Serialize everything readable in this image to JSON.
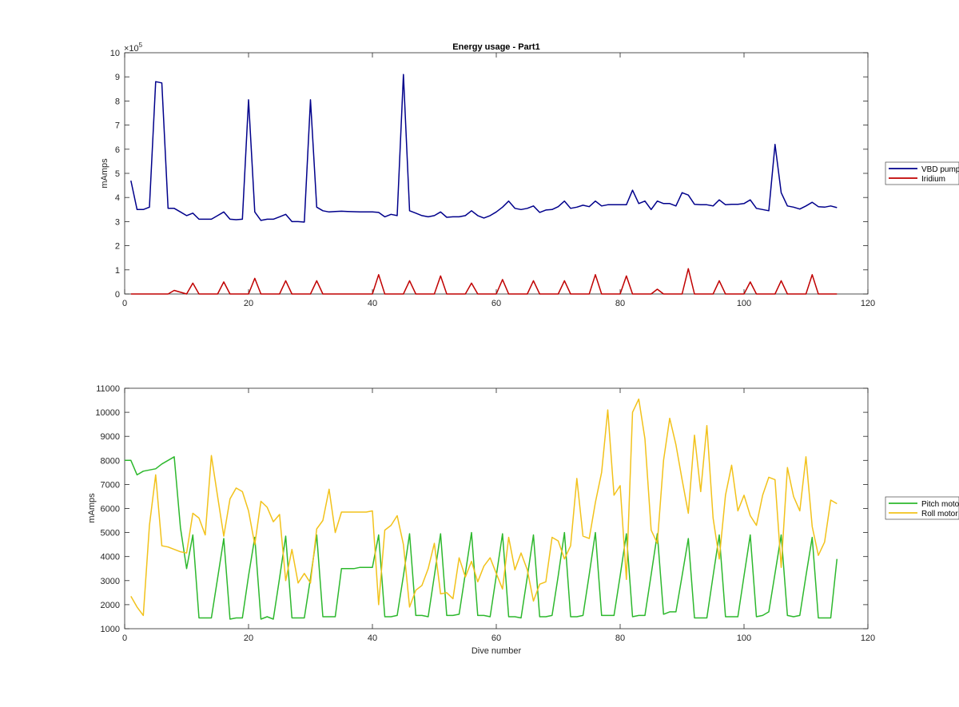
{
  "chart_data": [
    {
      "type": "line",
      "title": "Energy usage - Part1",
      "xlabel": "",
      "ylabel": "mAmps",
      "exponent_label": "×10",
      "exponent_power": "5",
      "xlim": [
        0,
        120
      ],
      "ylim": [
        0,
        1000000
      ],
      "xticks": [
        0,
        20,
        40,
        60,
        80,
        100,
        120
      ],
      "yticks": [
        0,
        100000,
        200000,
        300000,
        400000,
        500000,
        600000,
        700000,
        800000,
        900000,
        1000000
      ],
      "ytick_labels": [
        "0",
        "1",
        "2",
        "3",
        "4",
        "5",
        "6",
        "7",
        "8",
        "9",
        "10"
      ],
      "legend_position": "right",
      "series": [
        {
          "name": "VBD pump",
          "color": "#00008B",
          "x": [
            1,
            2,
            3,
            4,
            5,
            6,
            7,
            8,
            9,
            10,
            11,
            12,
            13,
            14,
            15,
            16,
            17,
            18,
            19,
            20,
            21,
            22,
            23,
            24,
            25,
            26,
            27,
            28,
            29,
            30,
            31,
            32,
            33,
            34,
            35,
            36,
            37,
            38,
            39,
            40,
            41,
            42,
            43,
            44,
            45,
            46,
            47,
            48,
            49,
            50,
            51,
            52,
            53,
            54,
            55,
            56,
            57,
            58,
            59,
            60,
            61,
            62,
            63,
            64,
            65,
            66,
            67,
            68,
            69,
            70,
            71,
            72,
            73,
            74,
            75,
            76,
            77,
            78,
            79,
            80,
            81,
            82,
            83,
            84,
            85,
            86,
            87,
            88,
            89,
            90,
            91,
            92,
            93,
            94,
            95,
            96,
            97,
            98,
            99,
            100,
            101,
            102,
            103,
            104,
            105,
            106,
            107,
            108,
            109,
            110,
            111,
            112,
            113,
            114,
            115
          ],
          "y": [
            470000,
            350000,
            350000,
            360000,
            880000,
            875000,
            355000,
            355000,
            340000,
            325000,
            335000,
            310000,
            310000,
            310000,
            325000,
            340000,
            310000,
            308000,
            310000,
            805000,
            340000,
            305000,
            310000,
            310000,
            320000,
            330000,
            300000,
            300000,
            298000,
            805000,
            360000,
            345000,
            340000,
            342000,
            343000,
            342000,
            341000,
            340000,
            340000,
            340000,
            338000,
            320000,
            330000,
            325000,
            910000,
            345000,
            335000,
            325000,
            320000,
            325000,
            340000,
            318000,
            320000,
            320000,
            325000,
            345000,
            325000,
            315000,
            325000,
            340000,
            360000,
            385000,
            355000,
            350000,
            355000,
            365000,
            338000,
            348000,
            350000,
            362000,
            385000,
            355000,
            360000,
            368000,
            362000,
            385000,
            365000,
            370000,
            370000,
            370000,
            370000,
            430000,
            375000,
            385000,
            350000,
            385000,
            375000,
            375000,
            365000,
            420000,
            410000,
            372000,
            370000,
            370000,
            365000,
            390000,
            370000,
            372000,
            372000,
            375000,
            390000,
            355000,
            350000,
            345000,
            620000,
            420000,
            365000,
            360000,
            352000,
            365000,
            380000,
            362000,
            360000,
            365000,
            358000
          ]
        },
        {
          "name": "Iridium",
          "color": "#C00000",
          "x": [
            1,
            7,
            8,
            10,
            11,
            12,
            15,
            16,
            17,
            20,
            21,
            22,
            25,
            26,
            27,
            30,
            31,
            32,
            40,
            41,
            42,
            45,
            46,
            47,
            50,
            51,
            52,
            55,
            56,
            57,
            60,
            61,
            62,
            65,
            66,
            67,
            70,
            71,
            72,
            75,
            76,
            77,
            80,
            81,
            82,
            85,
            86,
            87,
            90,
            91,
            92,
            95,
            96,
            97,
            100,
            101,
            102,
            105,
            106,
            107,
            110,
            111,
            112,
            115
          ],
          "y": [
            0,
            0,
            15000,
            0,
            45000,
            0,
            0,
            50000,
            0,
            0,
            65000,
            0,
            0,
            55000,
            0,
            0,
            55000,
            0,
            0,
            80000,
            0,
            0,
            55000,
            0,
            0,
            75000,
            0,
            0,
            45000,
            0,
            0,
            60000,
            0,
            0,
            55000,
            0,
            0,
            55000,
            0,
            0,
            80000,
            0,
            0,
            75000,
            0,
            0,
            20000,
            0,
            0,
            105000,
            0,
            0,
            55000,
            0,
            0,
            50000,
            0,
            0,
            55000,
            0,
            0,
            80000,
            0,
            0
          ]
        }
      ]
    },
    {
      "type": "line",
      "title": "",
      "xlabel": "Dive number",
      "ylabel": "mAmps",
      "xlim": [
        0,
        120
      ],
      "ylim": [
        1000,
        11000
      ],
      "xticks": [
        0,
        20,
        40,
        60,
        80,
        100,
        120
      ],
      "yticks": [
        1000,
        2000,
        3000,
        4000,
        5000,
        6000,
        7000,
        8000,
        9000,
        10000,
        11000
      ],
      "legend_position": "right",
      "series": [
        {
          "name": "Pitch motor",
          "color": "#2DB82D",
          "x": [
            0,
            1,
            2,
            3,
            4,
            5,
            6,
            7,
            8,
            9,
            10,
            11,
            12,
            13,
            14,
            15,
            16,
            17,
            18,
            19,
            20,
            21,
            22,
            23,
            24,
            25,
            26,
            27,
            28,
            29,
            30,
            31,
            32,
            33,
            34,
            35,
            36,
            37,
            38,
            39,
            40,
            41,
            42,
            43,
            44,
            45,
            46,
            47,
            48,
            49,
            50,
            51,
            52,
            53,
            54,
            55,
            56,
            57,
            58,
            59,
            60,
            61,
            62,
            63,
            64,
            65,
            66,
            67,
            68,
            69,
            70,
            71,
            72,
            73,
            74,
            75,
            76,
            77,
            78,
            79,
            80,
            81,
            82,
            83,
            84,
            85,
            86,
            87,
            88,
            89,
            90,
            91,
            92,
            93,
            94,
            95,
            96,
            97,
            98,
            99,
            100,
            101,
            102,
            103,
            104,
            105,
            106,
            107,
            108,
            109,
            110,
            111,
            112,
            113,
            114,
            115
          ],
          "y": [
            8000,
            8000,
            7400,
            7550,
            7600,
            7650,
            7850,
            8000,
            8150,
            5200,
            3500,
            4900,
            1450,
            1450,
            1450,
            3100,
            4750,
            1400,
            1450,
            1450,
            3200,
            4800,
            1400,
            1500,
            1400,
            3100,
            4850,
            1450,
            1450,
            1450,
            3100,
            4900,
            1500,
            1500,
            1500,
            3500,
            3500,
            3500,
            3550,
            3550,
            3550,
            4900,
            1500,
            1500,
            1550,
            3200,
            4950,
            1550,
            1550,
            1500,
            3200,
            4950,
            1550,
            1550,
            1600,
            3300,
            5000,
            1550,
            1550,
            1500,
            3200,
            4950,
            1500,
            1500,
            1450,
            3150,
            4900,
            1500,
            1500,
            1550,
            3200,
            5000,
            1500,
            1500,
            1550,
            3250,
            5000,
            1550,
            1550,
            1550,
            3200,
            4950,
            1500,
            1550,
            1550,
            3250,
            4950,
            1600,
            1700,
            1700,
            3200,
            4750,
            1450,
            1450,
            1450,
            3200,
            4900,
            1500,
            1500,
            1500,
            3200,
            4900,
            1500,
            1550,
            1700,
            3300,
            4900,
            1550,
            1500,
            1550,
            3200,
            4800,
            1450,
            1450,
            1450,
            3900
          ]
        },
        {
          "name": "Roll motor",
          "color": "#F2C21B",
          "x": [
            1,
            2,
            3,
            4,
            5,
            6,
            7,
            8,
            9,
            10,
            11,
            12,
            13,
            14,
            15,
            16,
            17,
            18,
            19,
            20,
            21,
            22,
            23,
            24,
            25,
            26,
            27,
            28,
            29,
            30,
            31,
            32,
            33,
            34,
            35,
            36,
            37,
            38,
            39,
            40,
            41,
            42,
            43,
            44,
            45,
            46,
            47,
            48,
            49,
            50,
            51,
            52,
            53,
            54,
            55,
            56,
            57,
            58,
            59,
            60,
            61,
            62,
            63,
            64,
            65,
            66,
            67,
            68,
            69,
            70,
            71,
            72,
            73,
            74,
            75,
            76,
            77,
            78,
            79,
            80,
            81,
            82,
            83,
            84,
            85,
            86,
            87,
            88,
            89,
            90,
            91,
            92,
            93,
            94,
            95,
            96,
            97,
            98,
            99,
            100,
            101,
            102,
            103,
            104,
            105,
            106,
            107,
            108,
            109,
            110,
            111,
            112,
            113,
            114,
            115
          ],
          "y": [
            2350,
            1900,
            1550,
            5300,
            7400,
            4450,
            4400,
            4300,
            4200,
            4150,
            5800,
            5600,
            4900,
            8200,
            6500,
            4850,
            6400,
            6850,
            6700,
            5900,
            4500,
            6300,
            6050,
            5450,
            5750,
            3000,
            4300,
            2900,
            3300,
            2900,
            5150,
            5500,
            6800,
            5000,
            5850,
            5850,
            5850,
            5850,
            5850,
            5900,
            2000,
            5100,
            5300,
            5700,
            4500,
            1900,
            2600,
            2800,
            3500,
            4550,
            2450,
            2500,
            2250,
            3950,
            3150,
            3800,
            2950,
            3600,
            3950,
            3300,
            2650,
            4800,
            3450,
            4150,
            3450,
            2150,
            2850,
            2950,
            4800,
            4650,
            3900,
            4450,
            7250,
            4850,
            4750,
            6250,
            7500,
            10100,
            6550,
            6950,
            3050,
            10000,
            10550,
            8900,
            5100,
            4550,
            8000,
            9750,
            8650,
            7200,
            5800,
            9050,
            6700,
            9450,
            5600,
            3900,
            6550,
            7800,
            5900,
            6550,
            5700,
            5300,
            6550,
            7300,
            7200,
            3550,
            7700,
            6500,
            5900,
            8150,
            5250,
            4050,
            4600,
            6350,
            6200
          ]
        }
      ]
    }
  ]
}
